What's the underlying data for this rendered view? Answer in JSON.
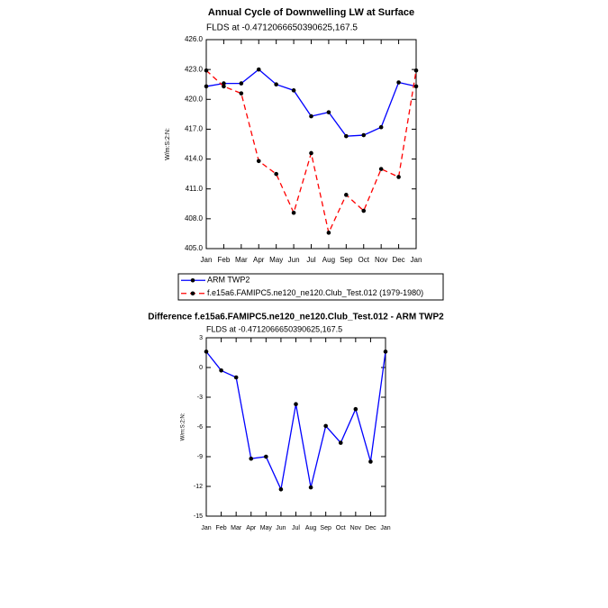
{
  "chart_data": [
    {
      "type": "line",
      "title": "Annual Cycle of Downwelling LW at Surface",
      "subtitle": "FLDS at -0.4712066650390625,167.5",
      "y_label": "W/m:S:2:N:",
      "categories": [
        "Jan",
        "Feb",
        "Mar",
        "Apr",
        "May",
        "Jun",
        "Jul",
        "Aug",
        "Sep",
        "Oct",
        "Nov",
        "Dec",
        "Jan"
      ],
      "ylim": [
        405,
        426
      ],
      "yticks": [
        {
          "value": 405,
          "label": "405.0"
        },
        {
          "value": 408,
          "label": "408.0"
        },
        {
          "value": 411,
          "label": "411.0"
        },
        {
          "value": 414,
          "label": "414.0"
        },
        {
          "value": 417,
          "label": "417.0"
        },
        {
          "value": 420,
          "label": "420.0"
        },
        {
          "value": 423,
          "label": "423.0"
        },
        {
          "value": 426,
          "label": "426.0"
        }
      ],
      "legend": "below",
      "series": [
        {
          "name": "ARM TWP2",
          "color": "#0000ff",
          "marker_color": "#000000",
          "dashed": false,
          "values": [
            421.3,
            421.6,
            421.6,
            423.0,
            421.5,
            420.9,
            418.3,
            418.7,
            416.3,
            416.4,
            417.2,
            421.7,
            421.3
          ]
        },
        {
          "name": "f.e15a6.FAMIPC5.ne120_ne120.Club_Test.012 (1979-1980)",
          "color": "#ff0000",
          "marker_color": "#000000",
          "dashed": true,
          "values": [
            422.9,
            421.3,
            420.6,
            413.8,
            412.5,
            408.6,
            414.6,
            406.6,
            410.4,
            408.8,
            413.0,
            412.2,
            422.9
          ]
        }
      ]
    },
    {
      "type": "line",
      "title": "Difference f.e15a6.FAMIPC5.ne120_ne120.Club_Test.012 - ARM TWP2",
      "subtitle": "FLDS at -0.4712066650390625,167.5",
      "y_label": "W/m:S:2:N:",
      "categories": [
        "Jan",
        "Feb",
        "Mar",
        "Apr",
        "May",
        "Jun",
        "Jul",
        "Aug",
        "Sep",
        "Oct",
        "Nov",
        "Dec",
        "Jan"
      ],
      "ylim": [
        -15,
        3
      ],
      "yticks": [
        -15,
        -12,
        -9,
        -6,
        -3,
        0,
        3
      ],
      "series": [
        {
          "color": "#0000ff",
          "marker_color": "#000000",
          "dashed": false,
          "values": [
            1.6,
            -0.3,
            -1.0,
            -9.2,
            -9.0,
            -12.3,
            -3.7,
            -12.1,
            -5.9,
            -7.6,
            -4.2,
            -9.5,
            1.6
          ]
        }
      ]
    }
  ]
}
